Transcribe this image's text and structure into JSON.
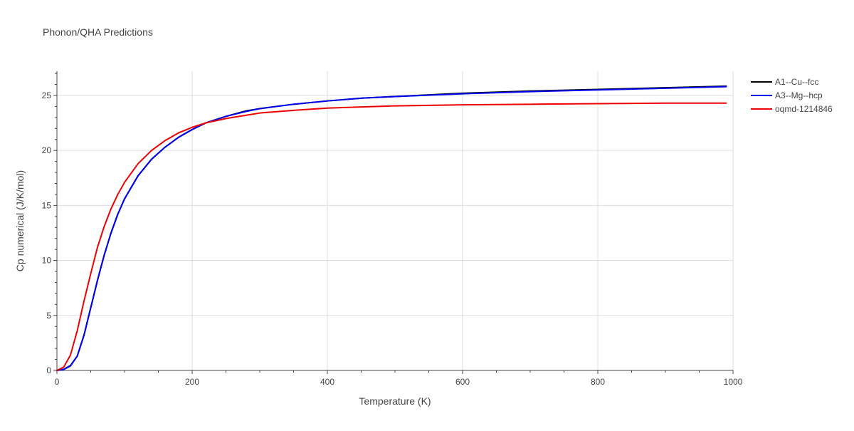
{
  "chart_data": {
    "type": "line",
    "title": "Phonon/QHA Predictions",
    "xlabel": "Temperature (K)",
    "ylabel": "Cp numerical (J/K/mol)",
    "xlim": [
      0,
      1000
    ],
    "ylim": [
      0,
      27.2
    ],
    "x_ticks": [
      0,
      200,
      400,
      600,
      800,
      1000
    ],
    "y_ticks": [
      0,
      5,
      10,
      15,
      20,
      25
    ],
    "grid": true,
    "legend_position": "top-right",
    "series": [
      {
        "name": "A1--Cu--fcc",
        "color": "#000000",
        "x": [
          0,
          10,
          20,
          30,
          40,
          50,
          60,
          70,
          80,
          90,
          100,
          120,
          140,
          160,
          180,
          200,
          220,
          250,
          280,
          300,
          350,
          400,
          450,
          500,
          600,
          700,
          800,
          900,
          990
        ],
        "y": [
          0,
          0.1,
          0.45,
          1.3,
          3.2,
          5.7,
          8.2,
          10.5,
          12.5,
          14.2,
          15.6,
          17.7,
          19.2,
          20.3,
          21.2,
          21.9,
          22.5,
          23.1,
          23.6,
          23.8,
          24.2,
          24.5,
          24.75,
          24.9,
          25.2,
          25.4,
          25.55,
          25.7,
          25.85
        ]
      },
      {
        "name": "A3--Mg--hcp",
        "color": "#0000ee",
        "x": [
          0,
          10,
          20,
          30,
          40,
          50,
          60,
          70,
          80,
          90,
          100,
          120,
          140,
          160,
          180,
          200,
          220,
          250,
          280,
          300,
          350,
          400,
          450,
          500,
          600,
          700,
          800,
          900,
          990
        ],
        "y": [
          0,
          0.1,
          0.4,
          1.3,
          3.2,
          5.7,
          8.2,
          10.5,
          12.5,
          14.2,
          15.6,
          17.7,
          19.2,
          20.3,
          21.2,
          21.9,
          22.5,
          23.1,
          23.55,
          23.8,
          24.2,
          24.5,
          24.75,
          24.9,
          25.15,
          25.35,
          25.5,
          25.65,
          25.8
        ]
      },
      {
        "name": "oqmd-1214846",
        "color": "#ee0000",
        "x": [
          0,
          10,
          20,
          30,
          40,
          50,
          60,
          70,
          80,
          90,
          100,
          120,
          140,
          160,
          180,
          200,
          220,
          250,
          280,
          300,
          350,
          400,
          450,
          500,
          600,
          700,
          800,
          900,
          990
        ],
        "y": [
          0,
          0.3,
          1.4,
          3.6,
          6.3,
          8.8,
          11.2,
          13.1,
          14.7,
          16.0,
          17.1,
          18.8,
          20.0,
          20.9,
          21.6,
          22.1,
          22.5,
          22.9,
          23.2,
          23.4,
          23.65,
          23.85,
          23.95,
          24.05,
          24.15,
          24.2,
          24.25,
          24.3,
          24.3
        ]
      }
    ]
  }
}
